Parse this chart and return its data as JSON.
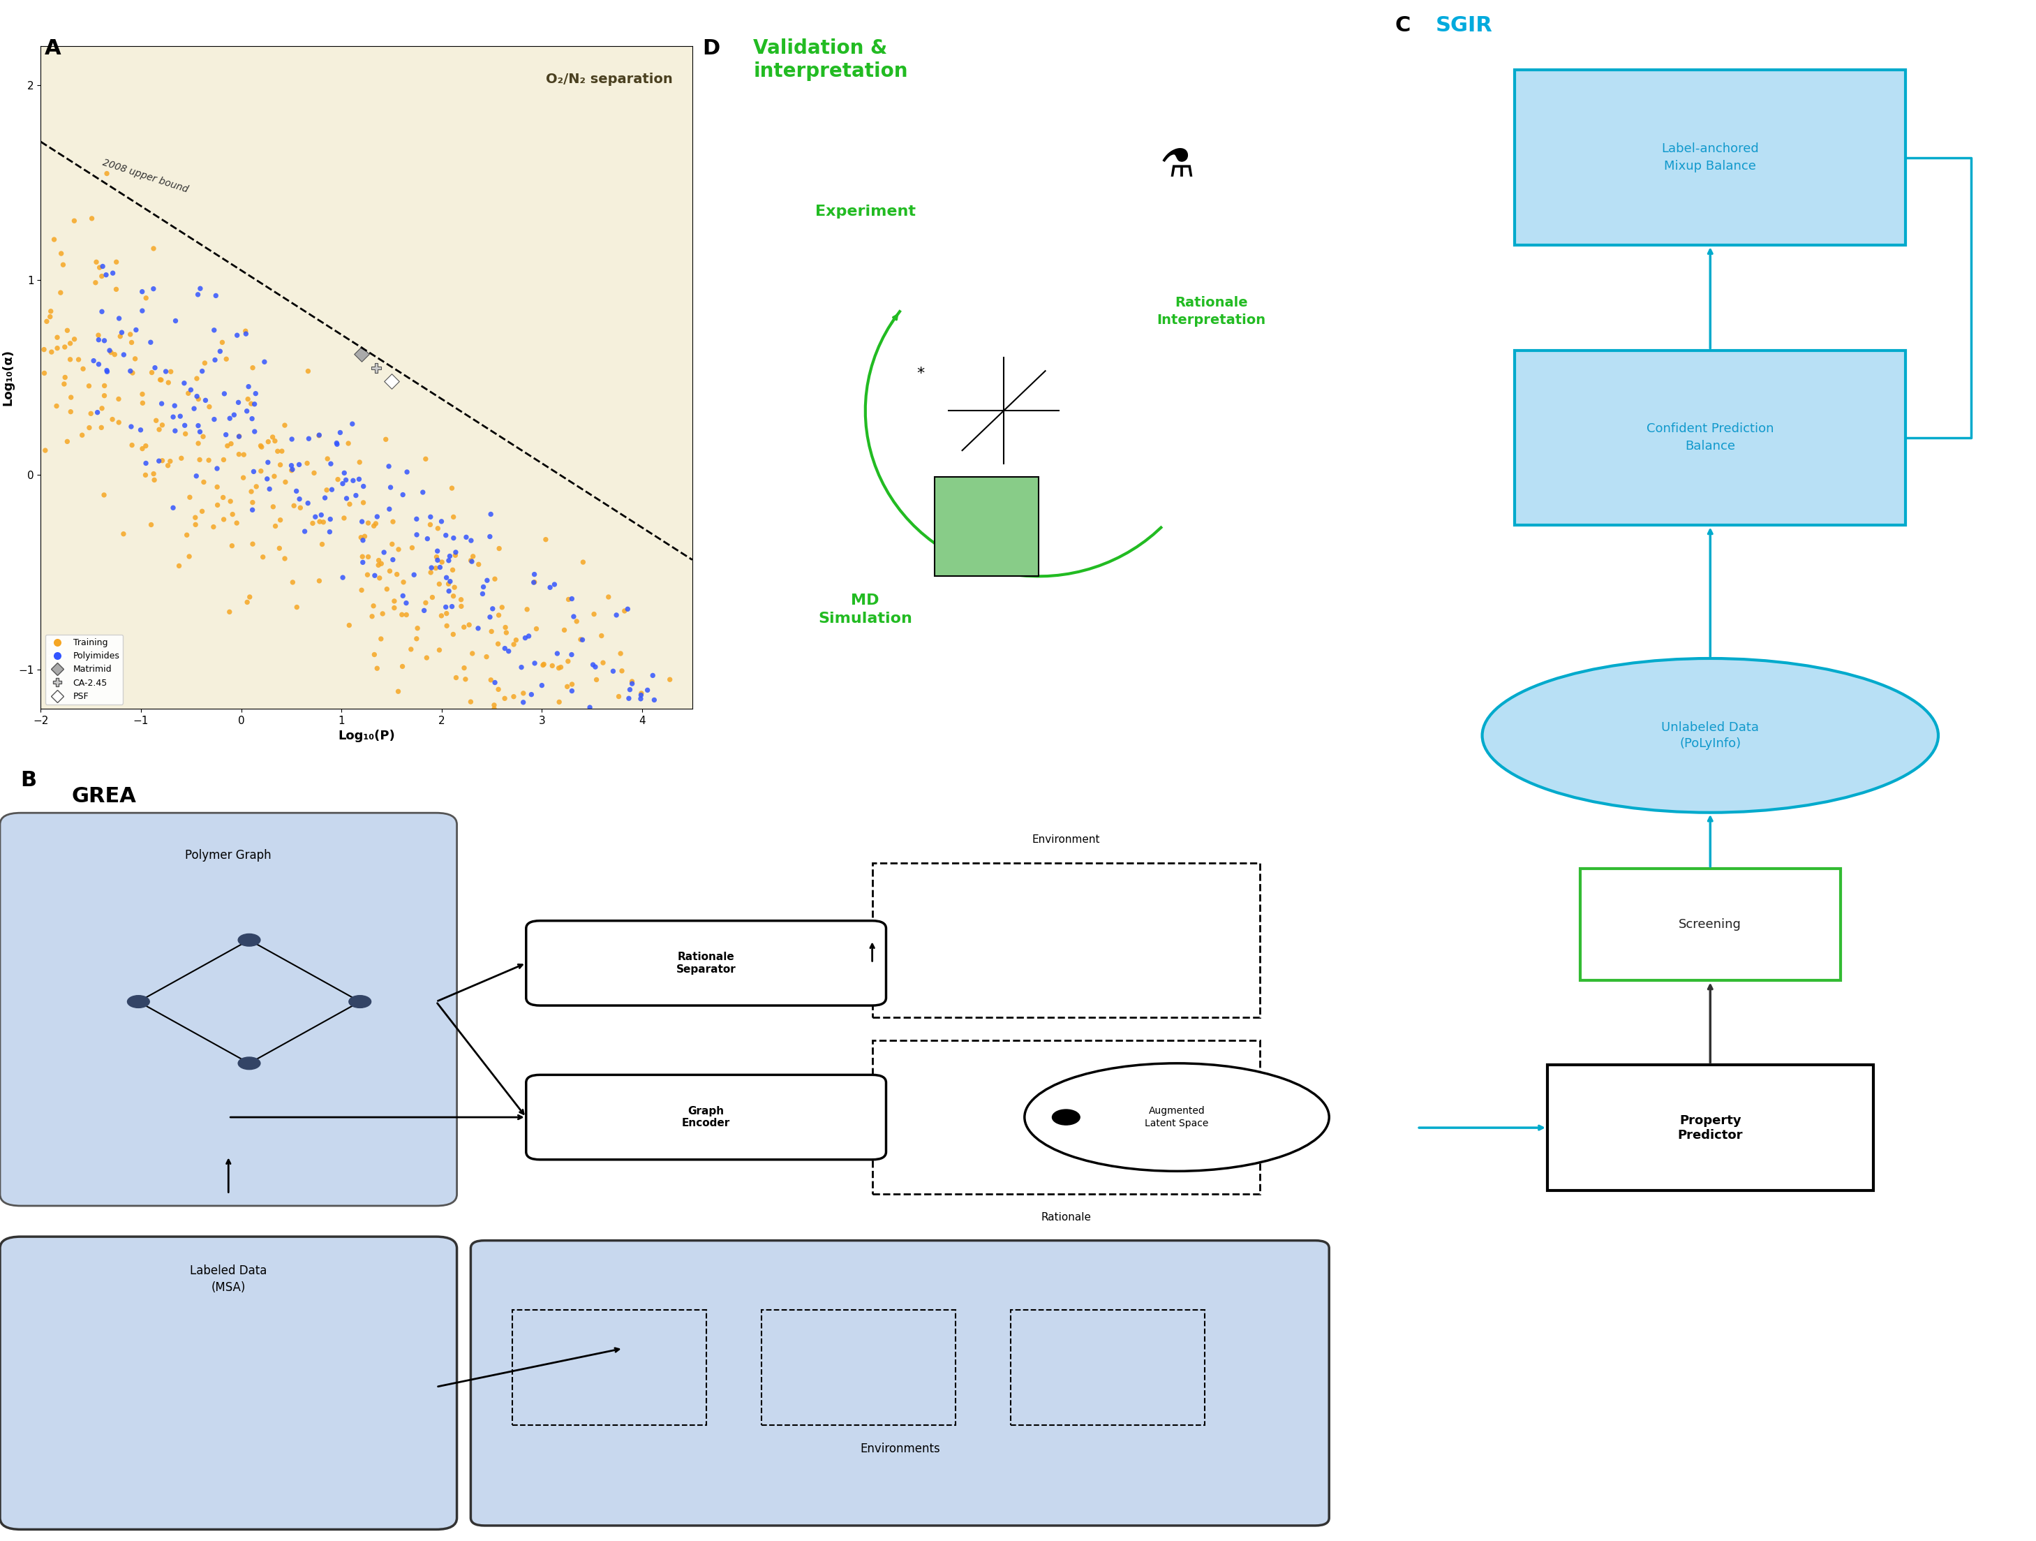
{
  "panel_A_bg": "#f5f0dc",
  "panel_A_title": "O₂/N₂ separation",
  "panel_A_title_color": "#4a4020",
  "panel_A_xlabel": "Log₁₀(P)",
  "panel_A_ylabel": "Log₁₀(α)",
  "panel_A_xlim": [
    -2,
    4.5
  ],
  "panel_A_ylim": [
    -1.2,
    2.2
  ],
  "panel_A_xticks": [
    -2,
    -1,
    0,
    1,
    2,
    3,
    4
  ],
  "panel_A_yticks": [
    -1,
    0,
    1,
    2
  ],
  "label_A": "A",
  "label_B": "B",
  "label_C": "C",
  "label_D": "D",
  "panel_B_label": "GREA",
  "panel_B_bg": "#dce8f5",
  "panel_C_bg": "#d0eef8",
  "panel_D_bg": "#e8f8e8",
  "sgir_color": "#00aadd",
  "grea_color": "#000000",
  "validation_color": "#22bb22",
  "upper_bound_text": "2008 upper bound",
  "training_color": "#f5a623",
  "polyimide_color": "#3355ff",
  "legend_training": "Training",
  "legend_polyimide": "Polyimides",
  "legend_matrimid": "Matrimid",
  "legend_ca245": "CA-2.45",
  "legend_psf": "PSF",
  "box_label_anchored": "Label-anchored\nMixup Balance",
  "box_confident": "Confident Prediction\nBalance",
  "oval_unlabeled": "Unlabeled Data\n(PoLyInfo)",
  "box_screening": "Screening",
  "box_property": "Property\nPredictor",
  "oval_augmented": "Augmented\nLatent Space",
  "box_rationale_sep": "Rationale\nSeparator",
  "box_graph_enc": "Graph\nEncoder",
  "text_polymer_graph": "Polymer Graph",
  "text_labeled_data": "Labeled Data\n(MSA)",
  "text_environment": "Environment",
  "text_environments": "Environments",
  "text_rationale": "Rationale",
  "text_experiment": "Experiment",
  "text_rationale_interp": "Rationale\nInterpretation",
  "text_md_sim": "MD\nSimulation"
}
